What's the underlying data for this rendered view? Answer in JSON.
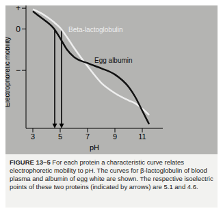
{
  "chart_data": {
    "type": "line",
    "x_label": "pH",
    "y_label": "Electrophoretic mobility",
    "xlim": [
      2.5,
      12.5
    ],
    "xticks": [
      3,
      5,
      7,
      9,
      11
    ],
    "ylim": [
      -4.8,
      1.2
    ],
    "yticks": [
      {
        "value": 1,
        "label": "+"
      },
      {
        "value": 0,
        "label": "0"
      },
      {
        "value": -2,
        "label": "−"
      }
    ],
    "x": [
      3,
      3.5,
      4,
      4.5,
      5,
      5.5,
      6,
      7,
      8,
      9,
      10,
      10.5,
      11,
      11.5
    ],
    "series": [
      {
        "name": "Beta-lactoglobulin",
        "color": "#eeeeee",
        "values": [
          0.95,
          0.8,
          0.6,
          0.35,
          0.05,
          -0.4,
          -0.9,
          -1.8,
          -2.6,
          -3.1,
          -3.45,
          -3.6,
          -3.85,
          -4.15
        ],
        "isoelectric_point": 5.1
      },
      {
        "name": "Egg albumin",
        "color": "#111111",
        "values": [
          0.85,
          0.6,
          0.35,
          0.05,
          -0.45,
          -1.0,
          -1.35,
          -1.65,
          -1.9,
          -2.2,
          -2.8,
          -3.3,
          -3.95,
          -4.6
        ],
        "isoelectric_point": 4.6
      }
    ],
    "caption_label": "FIGURE 13–5",
    "caption": "For each protein a characteristic curve relates electrophoretic mobility to pH. The curves for β-lactoglobulin of blood plasma and albumin of egg white are shown. The respective isoelectric points of these two proteins (indicated by arrows) are 5.1 and 4.6."
  }
}
